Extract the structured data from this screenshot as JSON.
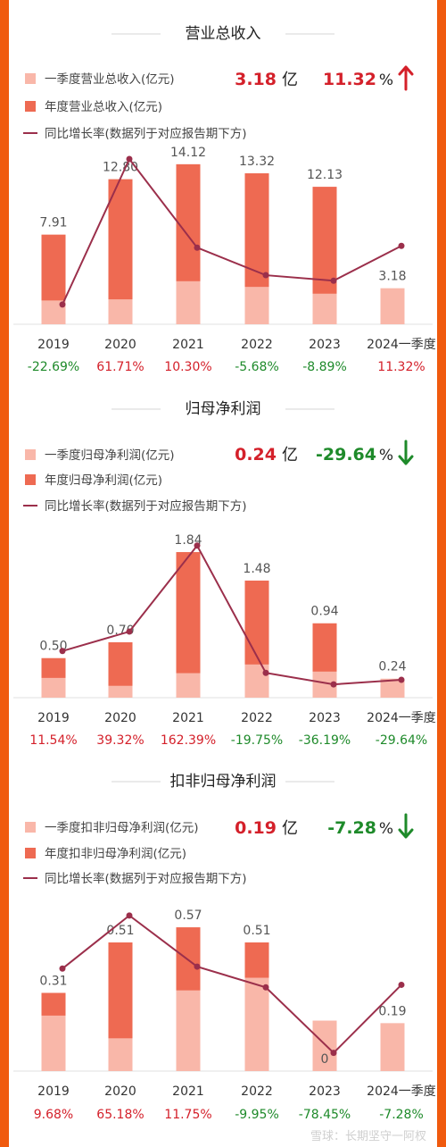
{
  "colors": {
    "annual": "#ee6a52",
    "q1": "#f9b7a9",
    "line": "#9b2f4b",
    "red": "#d4202a",
    "green": "#1e8a2a",
    "divider": "#d6d6d6",
    "frame": "#f05a0e"
  },
  "watermark": "雪球：长期坚守一阿杈",
  "chart_data": [
    {
      "type": "bar",
      "title": "营业总收入",
      "headline": {
        "value": "3.18",
        "unit": "亿",
        "pct": "11.32",
        "pct_unit": "%",
        "trend": "up"
      },
      "legend": [
        "一季度营业总收入(亿元)",
        "年度营业总收入(亿元)",
        "同比增长率(数据列于对应报告期下方)"
      ],
      "categories": [
        "2019",
        "2020",
        "2021",
        "2022",
        "2023",
        "2024一季度"
      ],
      "series": [
        {
          "name": "年度营业总收入(亿元)",
          "values": [
            7.91,
            12.8,
            14.12,
            13.32,
            12.13,
            null
          ]
        },
        {
          "name": "一季度营业总收入(亿元)",
          "values": [
            2.1,
            2.2,
            3.8,
            3.3,
            2.7,
            3.18
          ]
        }
      ],
      "value_labels": [
        "7.91",
        "12.80",
        "14.12",
        "13.32",
        "12.13",
        "3.18"
      ],
      "growth": [
        -22.69,
        61.71,
        10.3,
        -5.68,
        -8.89,
        11.32
      ],
      "growth_labels": [
        "-22.69%",
        "61.71%",
        "10.30%",
        "-5.68%",
        "-8.89%",
        "11.32%"
      ],
      "ylim": [
        0,
        16
      ],
      "growth_range": [
        -30,
        70
      ]
    },
    {
      "type": "bar",
      "title": "归母净利润",
      "headline": {
        "value": "0.24",
        "unit": "亿",
        "pct": "-29.64",
        "pct_unit": "%",
        "trend": "down"
      },
      "legend": [
        "一季度归母净利润(亿元)",
        "年度归母净利润(亿元)",
        "同比增长率(数据列于对应报告期下方)"
      ],
      "categories": [
        "2019",
        "2020",
        "2021",
        "2022",
        "2023",
        "2024一季度"
      ],
      "series": [
        {
          "name": "年度归母净利润(亿元)",
          "values": [
            0.5,
            0.7,
            1.84,
            1.48,
            0.94,
            null
          ]
        },
        {
          "name": "一季度归母净利润(亿元)",
          "values": [
            0.25,
            0.15,
            0.31,
            0.42,
            0.33,
            0.24
          ]
        }
      ],
      "value_labels": [
        "0.50",
        "0.70",
        "1.84",
        "1.48",
        "0.94",
        "0.24"
      ],
      "growth": [
        11.54,
        39.32,
        162.39,
        -19.75,
        -36.19,
        -29.64
      ],
      "growth_labels": [
        "11.54%",
        "39.32%",
        "162.39%",
        "-19.75%",
        "-36.19%",
        "-29.64%"
      ],
      "ylim": [
        0,
        2.1
      ],
      "growth_range": [
        -45,
        180
      ]
    },
    {
      "type": "bar",
      "title": "扣非归母净利润",
      "headline": {
        "value": "0.19",
        "unit": "亿",
        "pct": "-7.28",
        "pct_unit": "%",
        "trend": "down"
      },
      "legend": [
        "一季度扣非归母净利润(亿元)",
        "年度扣非归母净利润(亿元)",
        "同比增长率(数据列于对应报告期下方)"
      ],
      "categories": [
        "2019",
        "2020",
        "2021",
        "2022",
        "2023",
        "2024一季度"
      ],
      "series": [
        {
          "name": "年度扣非归母净利润(亿元)",
          "values": [
            0.31,
            0.51,
            0.57,
            0.51,
            0.0,
            null
          ]
        },
        {
          "name": "一季度扣非归母净利润(亿元)",
          "values": [
            0.22,
            0.13,
            0.32,
            0.37,
            0.2,
            0.19
          ]
        }
      ],
      "value_labels": [
        "0.31",
        "0.51",
        "0.57",
        "0.51",
        "0",
        "0.19"
      ],
      "growth": [
        9.68,
        65.18,
        11.75,
        -9.95,
        -78.45,
        -7.28
      ],
      "growth_labels": [
        "9.68%",
        "65.18%",
        "11.75%",
        "-9.95%",
        "-78.45%",
        "-7.28%"
      ],
      "ylim": [
        0,
        0.68
      ],
      "growth_range": [
        -90,
        80
      ]
    }
  ]
}
